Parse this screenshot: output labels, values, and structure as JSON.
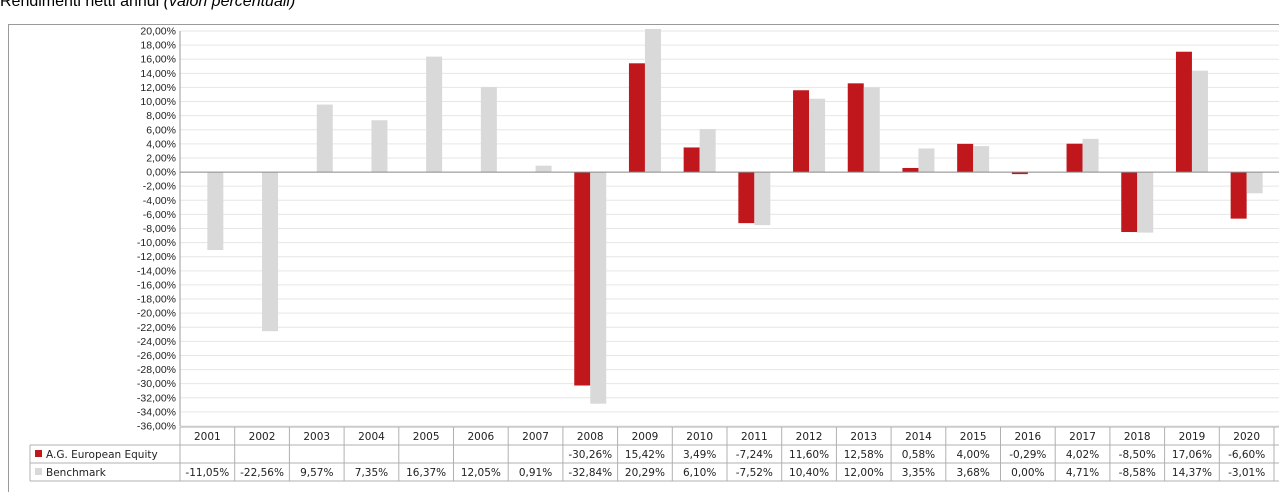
{
  "title": "Rendimenti netti annui",
  "subtitle": "(valori percentuali)",
  "chart_data": {
    "type": "bar",
    "categories": [
      "2001",
      "2002",
      "2003",
      "2004",
      "2005",
      "2006",
      "2007",
      "2008",
      "2009",
      "2010",
      "2011",
      "2012",
      "2013",
      "2014",
      "2015",
      "2016",
      "2017",
      "2018",
      "2019",
      "2020"
    ],
    "series": [
      {
        "name": "A.G. European Equity",
        "color": "#c0171d",
        "values": [
          null,
          null,
          null,
          null,
          null,
          null,
          null,
          -30.26,
          15.42,
          3.49,
          -7.24,
          11.6,
          12.58,
          0.58,
          4.0,
          -0.29,
          4.02,
          -8.5,
          17.06,
          -6.6
        ],
        "labels": [
          "",
          "",
          "",
          "",
          "",
          "",
          "",
          "-30,26%",
          "15,42%",
          "3,49%",
          "-7,24%",
          "11,60%",
          "12,58%",
          "0,58%",
          "4,00%",
          "-0,29%",
          "4,02%",
          "-8,50%",
          "17,06%",
          "-6,60%"
        ]
      },
      {
        "name": "Benchmark",
        "color": "#d9d9d9",
        "values": [
          -11.05,
          -22.56,
          9.57,
          7.35,
          16.37,
          12.05,
          0.91,
          -32.84,
          20.29,
          6.1,
          -7.52,
          10.4,
          12.0,
          3.35,
          3.68,
          0.0,
          4.71,
          -8.58,
          14.37,
          -3.01
        ],
        "labels": [
          "-11,05%",
          "-22,56%",
          "9,57%",
          "7,35%",
          "16,37%",
          "12,05%",
          "0,91%",
          "-32,84%",
          "20,29%",
          "6,10%",
          "-7,52%",
          "10,40%",
          "12,00%",
          "3,35%",
          "3,68%",
          "0,00%",
          "4,71%",
          "-8,58%",
          "14,37%",
          "-3,01%"
        ]
      }
    ],
    "ylim": [
      -36,
      20
    ],
    "ytick_labels": [
      "20,00%",
      "18,00%",
      "16,00%",
      "14,00%",
      "12,00%",
      "10,00%",
      "8,00%",
      "6,00%",
      "4,00%",
      "2,00%",
      "0,00%",
      "-2,00%",
      "-4,00%",
      "-6,00%",
      "-8,00%",
      "-10,00%",
      "-12,00%",
      "-14,00%",
      "-16,00%",
      "-18,00%",
      "-20,00%",
      "-22,00%",
      "-24,00%",
      "-26,00%",
      "-28,00%",
      "-30,00%",
      "-32,00%",
      "-34,00%",
      "-36,00%"
    ],
    "grid": true,
    "legend": "data-table"
  }
}
